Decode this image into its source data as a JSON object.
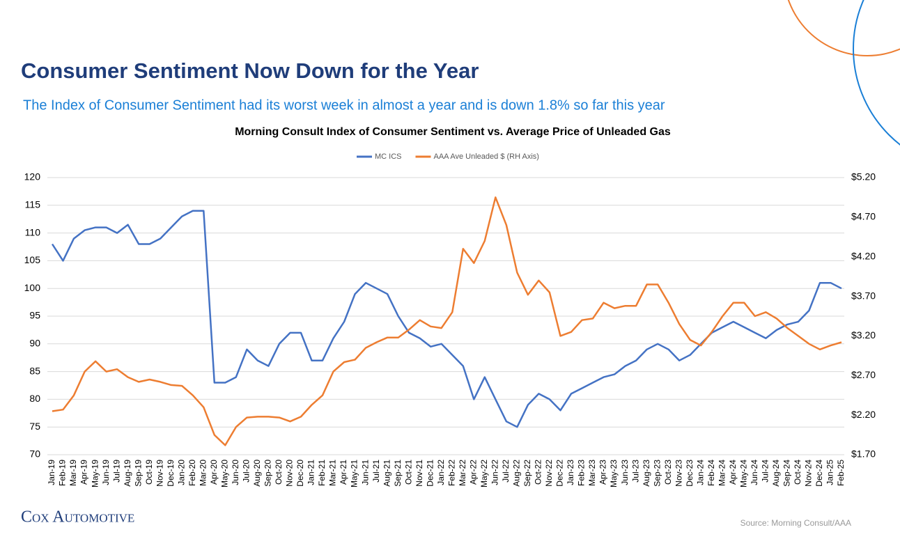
{
  "header": {
    "title": "Consumer Sentiment Now Down for the Year",
    "subtitle": "The Index of Consumer Sentiment had its worst week in almost a year and is down 1.8% so far this year",
    "logo": "Cox Automotive",
    "source": "Source: Morning Consult/AAA"
  },
  "chart_data": {
    "type": "line",
    "title": "Morning Consult Index of Consumer Sentiment vs. Average Price of Unleaded Gas",
    "categories": [
      "Jan-19",
      "Feb-19",
      "Mar-19",
      "Apr-19",
      "May-19",
      "Jun-19",
      "Jul-19",
      "Aug-19",
      "Sep-19",
      "Oct-19",
      "Nov-19",
      "Dec-19",
      "Jan-20",
      "Feb-20",
      "Mar-20",
      "Apr-20",
      "May-20",
      "Jun-20",
      "Jul-20",
      "Aug-20",
      "Sep-20",
      "Oct-20",
      "Nov-20",
      "Dec-20",
      "Jan-21",
      "Feb-21",
      "Mar-21",
      "Apr-21",
      "May-21",
      "Jun-21",
      "Jul-21",
      "Aug-21",
      "Sep-21",
      "Oct-21",
      "Nov-21",
      "Dec-21",
      "Jan-22",
      "Feb-22",
      "Mar-22",
      "Apr-22",
      "May-22",
      "Jun-22",
      "Jul-22",
      "Aug-22",
      "Sep-22",
      "Oct-22",
      "Nov-22",
      "Dec-22",
      "Jan-23",
      "Feb-23",
      "Mar-23",
      "Apr-23",
      "May-23",
      "Jun-23",
      "Jul-23",
      "Aug-23",
      "Sep-23",
      "Oct-23",
      "Nov-23",
      "Dec-23",
      "Jan-24",
      "Feb-24",
      "Mar-24",
      "Apr-24",
      "May-24",
      "Jun-24",
      "Jul-24",
      "Aug-24",
      "Sep-24",
      "Oct-24",
      "Nov-24",
      "Dec-24",
      "Jan-25",
      "Feb-25"
    ],
    "series": [
      {
        "name": "MC ICS",
        "color": "#4472c4",
        "axis": "y",
        "values": [
          108,
          105,
          109,
          110.5,
          111,
          111,
          110,
          111.5,
          108,
          108,
          109,
          111,
          113,
          114,
          114,
          83,
          83,
          84,
          89,
          87,
          86,
          90,
          92,
          92,
          87,
          87,
          91,
          94,
          99,
          101,
          100,
          99,
          95,
          92,
          91,
          89.5,
          90,
          88,
          86,
          80,
          84,
          80,
          76,
          75,
          79,
          81,
          80,
          78,
          81,
          82,
          83,
          84,
          84.5,
          86,
          87,
          89,
          90,
          89,
          87,
          88,
          90,
          92,
          93,
          94,
          93,
          92,
          91,
          92.5,
          93.5,
          94,
          96,
          101,
          101,
          100
        ]
      },
      {
        "name": "AAA Ave Unleaded $ (RH Axis)",
        "color": "#ed7d31",
        "axis": "y2",
        "values": [
          2.25,
          2.27,
          2.45,
          2.75,
          2.88,
          2.75,
          2.78,
          2.68,
          2.62,
          2.65,
          2.62,
          2.58,
          2.57,
          2.45,
          2.3,
          1.95,
          1.82,
          2.05,
          2.17,
          2.18,
          2.18,
          2.17,
          2.12,
          2.18,
          2.33,
          2.45,
          2.75,
          2.87,
          2.9,
          3.05,
          3.12,
          3.18,
          3.18,
          3.28,
          3.4,
          3.32,
          3.3,
          3.5,
          4.3,
          4.12,
          4.4,
          4.95,
          4.6,
          4.0,
          3.72,
          3.9,
          3.75,
          3.2,
          3.25,
          3.4,
          3.42,
          3.62,
          3.55,
          3.58,
          3.58,
          3.85,
          3.85,
          3.62,
          3.35,
          3.15,
          3.08,
          3.25,
          3.45,
          3.62,
          3.62,
          3.45,
          3.5,
          3.42,
          3.3,
          3.2,
          3.1,
          3.03,
          3.08,
          3.12
        ]
      }
    ],
    "ylim": [
      70,
      120
    ],
    "yticks": [
      70,
      75,
      80,
      85,
      90,
      95,
      100,
      105,
      110,
      115,
      120
    ],
    "y2lim": [
      1.7,
      5.2
    ],
    "y2ticks": [
      {
        "value": 1.7,
        "label": "$1.70"
      },
      {
        "value": 2.2,
        "label": "$2.20"
      },
      {
        "value": 2.7,
        "label": "$2.70"
      },
      {
        "value": 3.2,
        "label": "$3.20"
      },
      {
        "value": 3.7,
        "label": "$3.70"
      },
      {
        "value": 4.2,
        "label": "$4.20"
      },
      {
        "value": 4.7,
        "label": "$4.70"
      },
      {
        "value": 5.2,
        "label": "$5.20"
      }
    ],
    "grid": true,
    "legend": "top"
  }
}
